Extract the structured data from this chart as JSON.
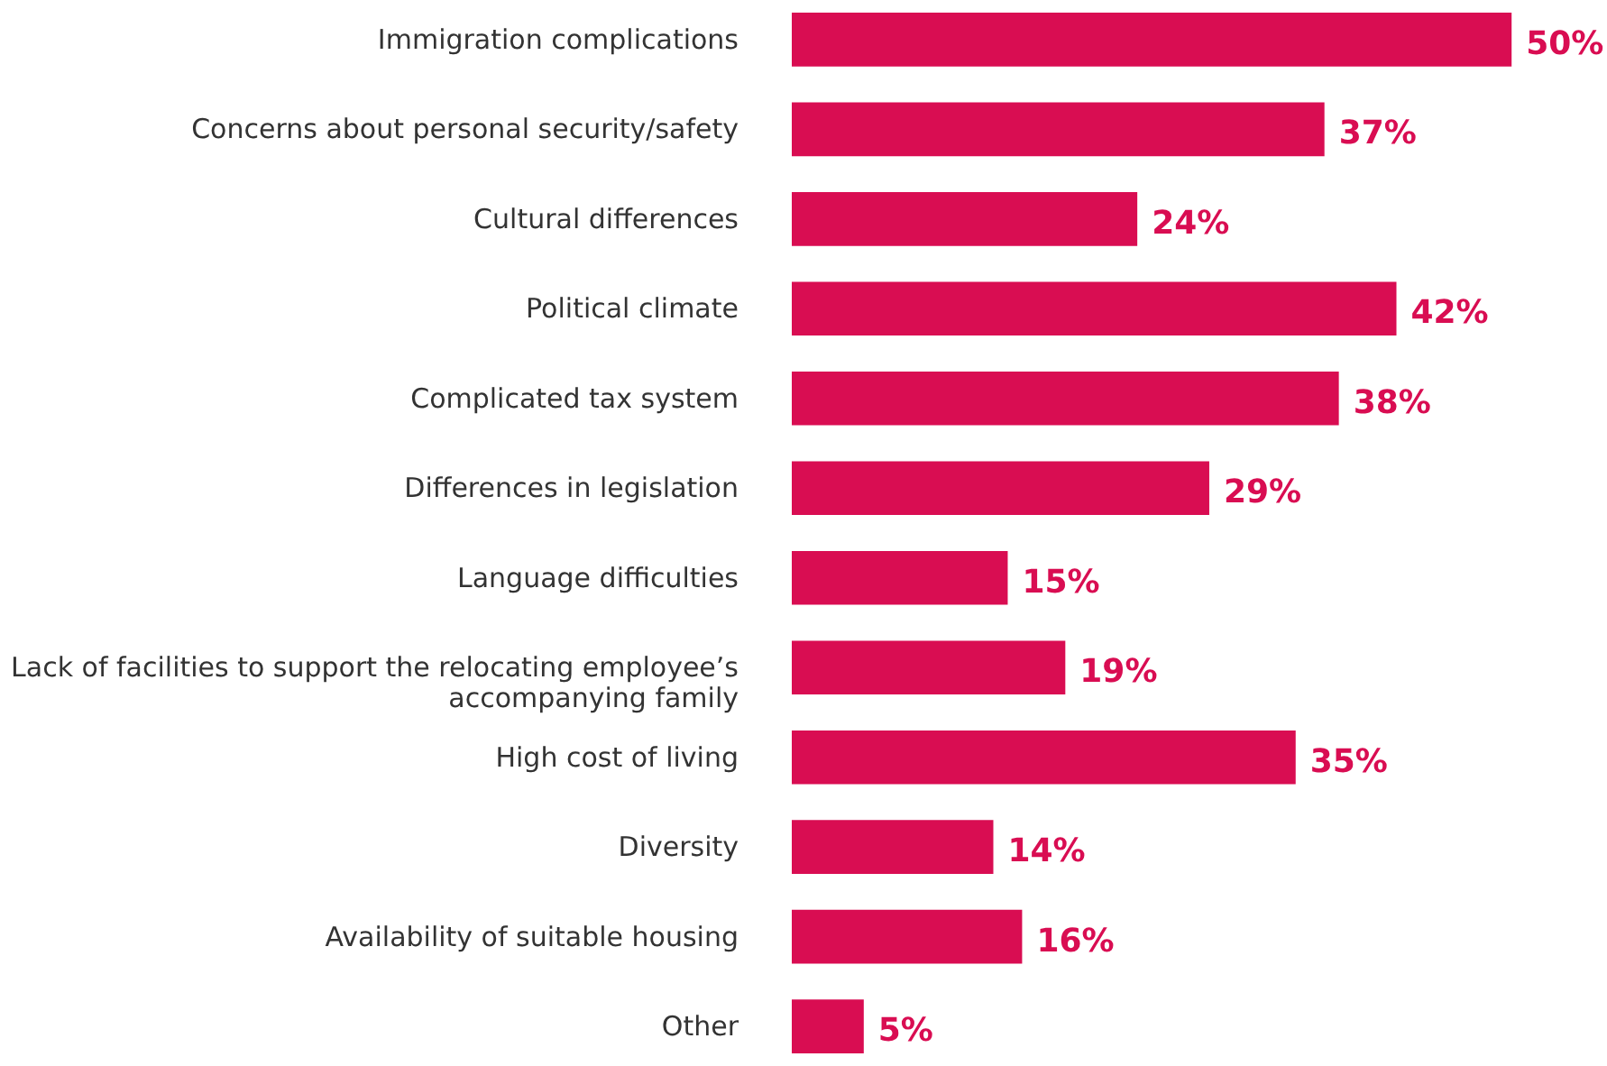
{
  "chart_data": {
    "type": "bar",
    "orientation": "horizontal",
    "categories": [
      "Immigration complications",
      "Concerns about personal security/safety",
      "Cultural differences",
      "Political climate",
      "Complicated tax system",
      "Differences in legislation",
      "Language difficulties",
      "Lack of facilities to support the relocating employee’s accompanying family",
      "High cost of living",
      "Diversity",
      "Availability of suitable housing",
      "Other"
    ],
    "values": [
      50,
      37,
      24,
      42,
      38,
      29,
      15,
      19,
      35,
      14,
      16,
      5
    ],
    "value_labels": [
      "50%",
      "37%",
      "24%",
      "42%",
      "38%",
      "29%",
      "15%",
      "19%",
      "35%",
      "14%",
      "16%",
      "5%"
    ],
    "color": "#d90d52",
    "grid": false
  }
}
